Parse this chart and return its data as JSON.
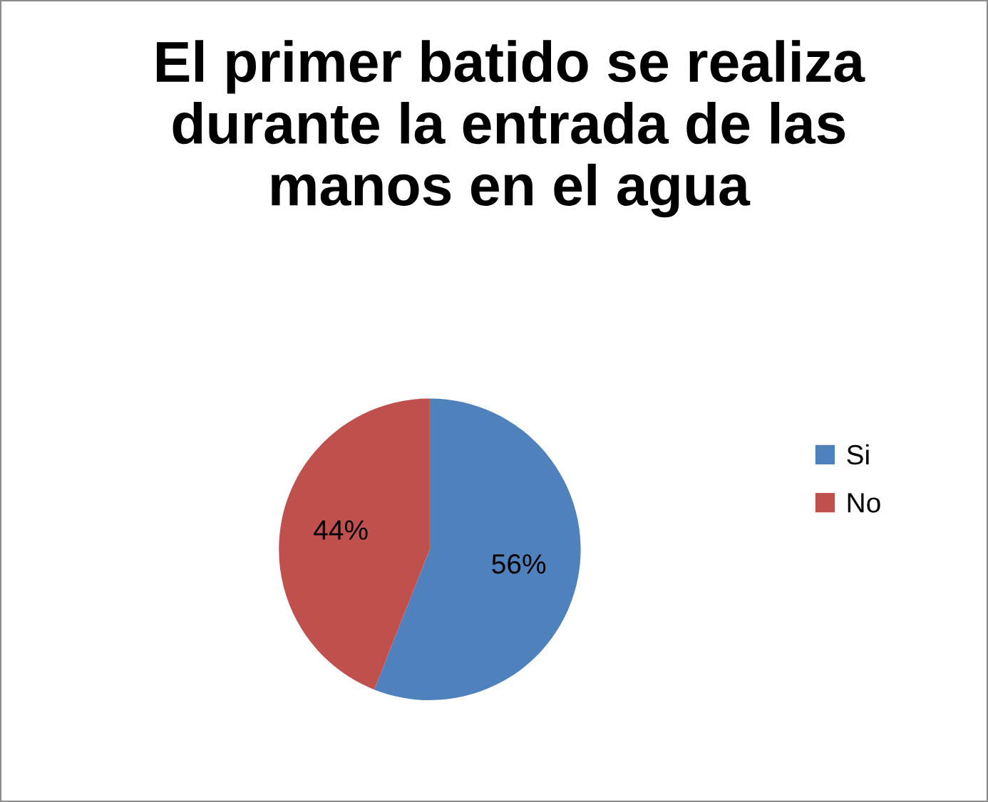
{
  "chart_data": {
    "type": "pie",
    "title": "El primer batido se realiza\ndurante la entrada de las\nmanos en el agua",
    "categories": [
      "Si",
      "No"
    ],
    "values": [
      56,
      44
    ],
    "colors": [
      "#4f81bd",
      "#c0504d"
    ],
    "value_labels": [
      "56%",
      "44%"
    ],
    "legend": "right"
  }
}
